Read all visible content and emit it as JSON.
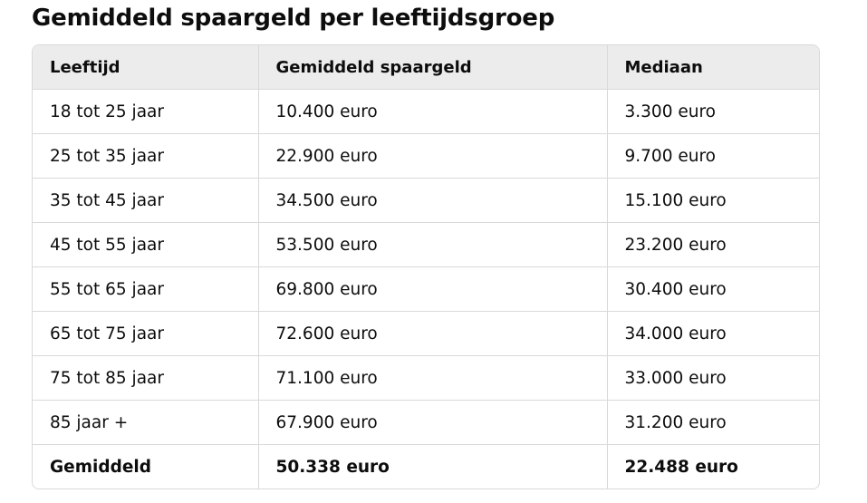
{
  "title": "Gemiddeld spaargeld per leeftijdsgroep",
  "table": {
    "headers": [
      "Leeftijd",
      "Gemiddeld spaargeld",
      "Mediaan"
    ],
    "rows": [
      [
        "18 tot 25 jaar",
        "10.400 euro",
        "3.300 euro"
      ],
      [
        "25 tot 35 jaar",
        "22.900 euro",
        "9.700 euro"
      ],
      [
        "35 tot 45 jaar",
        "34.500 euro",
        "15.100 euro"
      ],
      [
        "45 tot 55 jaar",
        "53.500 euro",
        "23.200 euro"
      ],
      [
        "55 tot 65 jaar",
        "69.800 euro",
        "30.400 euro"
      ],
      [
        "65 tot 75 jaar",
        "72.600 euro",
        "34.000 euro"
      ],
      [
        "75 tot 85 jaar",
        "71.100 euro",
        "33.000 euro"
      ],
      [
        "85 jaar +",
        "67.900 euro",
        "31.200 euro"
      ],
      [
        "Gemiddeld",
        "50.338 euro",
        "22.488 euro"
      ]
    ]
  }
}
